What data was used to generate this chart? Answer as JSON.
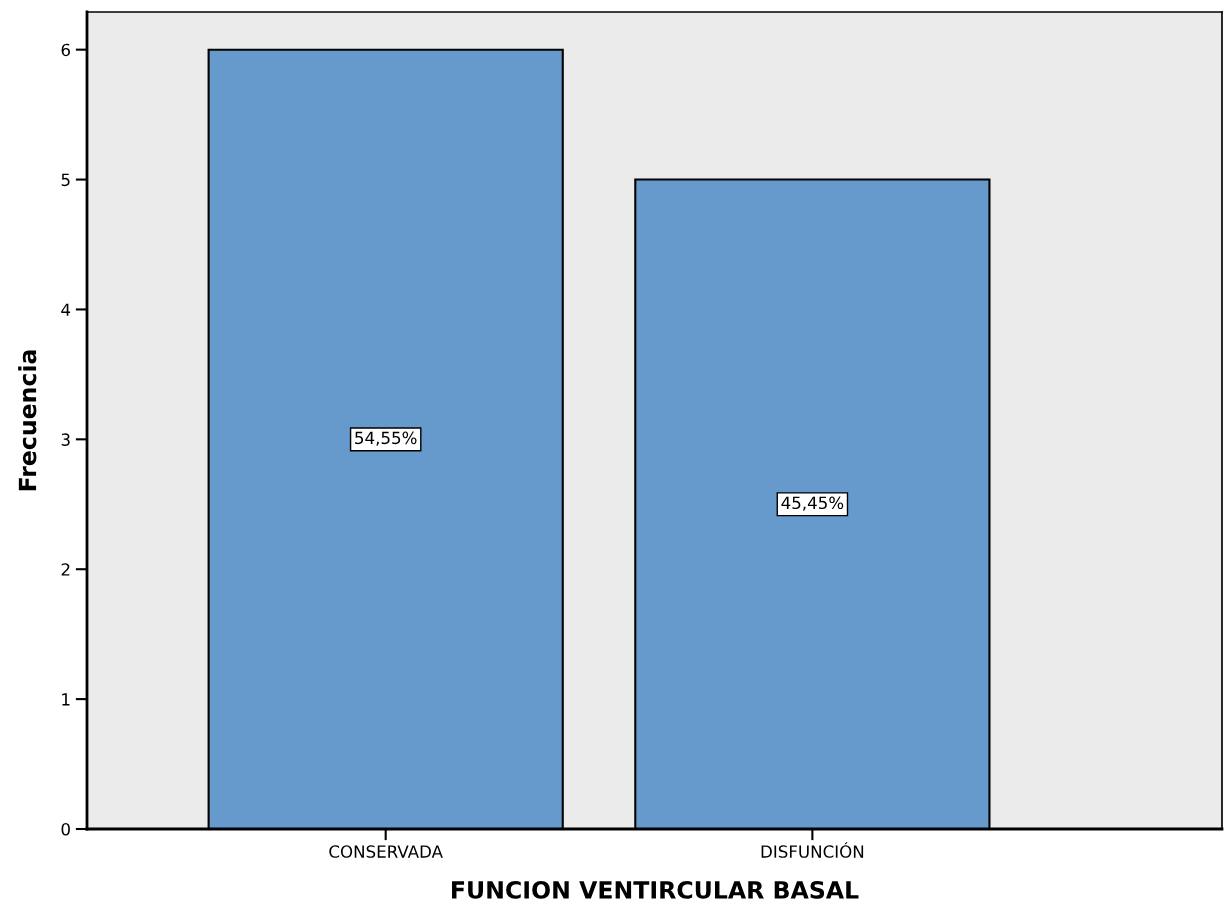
{
  "chart_data": {
    "type": "bar",
    "xlabel": "FUNCION VENTIRCULAR BASAL",
    "ylabel": "Frecuencia",
    "categories": [
      "CONSERVADA",
      "DISFUNCIÓN"
    ],
    "values": [
      6,
      5
    ],
    "annotations": [
      "54,55%",
      "45,45%"
    ],
    "color": "#6699cc",
    "ylim": [
      0,
      6.29
    ],
    "yticks": [
      0,
      1,
      2,
      3,
      4,
      5,
      6
    ],
    "grid": false,
    "legend": false
  }
}
